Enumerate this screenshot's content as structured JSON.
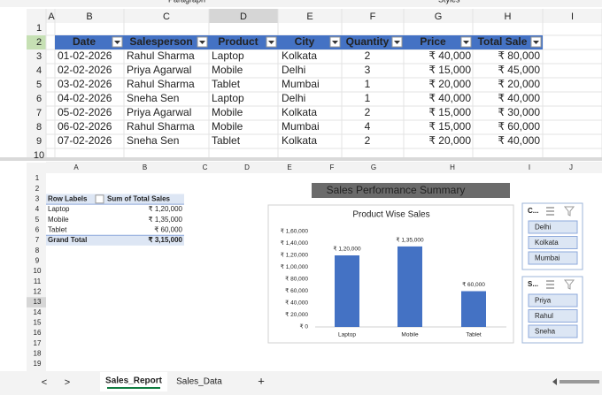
{
  "ribbon": [
    "Paragraph",
    "Styles"
  ],
  "sheet1": {
    "columns": [
      "A",
      "B",
      "C",
      "D",
      "E",
      "F",
      "G",
      "H",
      "I"
    ],
    "row_numbers": [
      1,
      2,
      3,
      4,
      5,
      6,
      7,
      8,
      9,
      10
    ],
    "header": [
      "Date",
      "Salesperson",
      "Product",
      "City",
      "Quantity",
      "Price",
      "Total Sale"
    ],
    "rows": [
      [
        "01-02-2026",
        "Rahul Sharma",
        "Laptop",
        "Kolkata",
        2,
        "₹ 40,000",
        "₹ 80,000"
      ],
      [
        "02-02-2026",
        "Priya Agarwal",
        "Mobile",
        "Delhi",
        3,
        "₹ 15,000",
        "₹ 45,000"
      ],
      [
        "03-02-2026",
        "Rahul Sharma",
        "Tablet",
        "Mumbai",
        1,
        "₹ 20,000",
        "₹ 20,000"
      ],
      [
        "04-02-2026",
        "Sneha Sen",
        "Laptop",
        "Delhi",
        1,
        "₹ 40,000",
        "₹ 40,000"
      ],
      [
        "05-02-2026",
        "Priya Agarwal",
        "Mobile",
        "Kolkata",
        2,
        "₹ 15,000",
        "₹ 30,000"
      ],
      [
        "06-02-2026",
        "Rahul Sharma",
        "Mobile",
        "Mumbai",
        4,
        "₹ 15,000",
        "₹ 60,000"
      ],
      [
        "07-02-2026",
        "Sneha Sen",
        "Tablet",
        "Kolkata",
        2,
        "₹ 20,000",
        "₹ 40,000"
      ]
    ]
  },
  "sheet2": {
    "columns": [
      "A",
      "B",
      "C",
      "D",
      "E",
      "F",
      "G",
      "H",
      "I",
      "J"
    ],
    "row_numbers": [
      1,
      2,
      3,
      4,
      5,
      6,
      7,
      8,
      9,
      10,
      11,
      12,
      13,
      14,
      15,
      16,
      17,
      18,
      19
    ]
  },
  "pivot": {
    "header": [
      "Row Labels",
      "Sum of Total Sales"
    ],
    "rows": [
      [
        "Laptop",
        "₹ 1,20,000"
      ],
      [
        "Mobile",
        "₹ 1,35,000"
      ],
      [
        "Tablet",
        "₹ 60,000"
      ]
    ],
    "total": [
      "Grand Total",
      "₹ 3,15,000"
    ]
  },
  "summary_title": "Sales Performance Summary",
  "chart_data": {
    "type": "bar",
    "title": "Product Wise Sales",
    "categories": [
      "Laptop",
      "Mobile",
      "Tablet"
    ],
    "values": [
      120000,
      135000,
      60000
    ],
    "value_labels": [
      "₹ 1,20,000",
      "₹ 1,35,000",
      "₹ 60,000"
    ],
    "color": "#4472c4",
    "ylim": [
      0,
      160000
    ],
    "yticks": [
      {
        "value": 0,
        "label": "₹ 0"
      },
      {
        "value": 20000,
        "label": "₹ 20,000"
      },
      {
        "value": 40000,
        "label": "₹ 40,000"
      },
      {
        "value": 60000,
        "label": "₹ 60,000"
      },
      {
        "value": 80000,
        "label": "₹ 80,000"
      },
      {
        "value": 100000,
        "label": "₹ 1,00,000"
      },
      {
        "value": 120000,
        "label": "₹ 1,20,000"
      },
      {
        "value": 140000,
        "label": "₹ 1,40,000"
      },
      {
        "value": 160000,
        "label": "₹ 1,60,000"
      }
    ],
    "grid": false
  },
  "slicers": [
    {
      "title": "C...",
      "items": [
        "Delhi",
        "Kolkata",
        "Mumbai"
      ]
    },
    {
      "title": "S...",
      "items": [
        "Priya",
        "Rahul",
        "Sneha"
      ]
    }
  ],
  "tabs": {
    "nav": [
      "<",
      ">"
    ],
    "sheets": [
      "Sales_Report",
      "Sales_Data"
    ],
    "add": "+"
  }
}
